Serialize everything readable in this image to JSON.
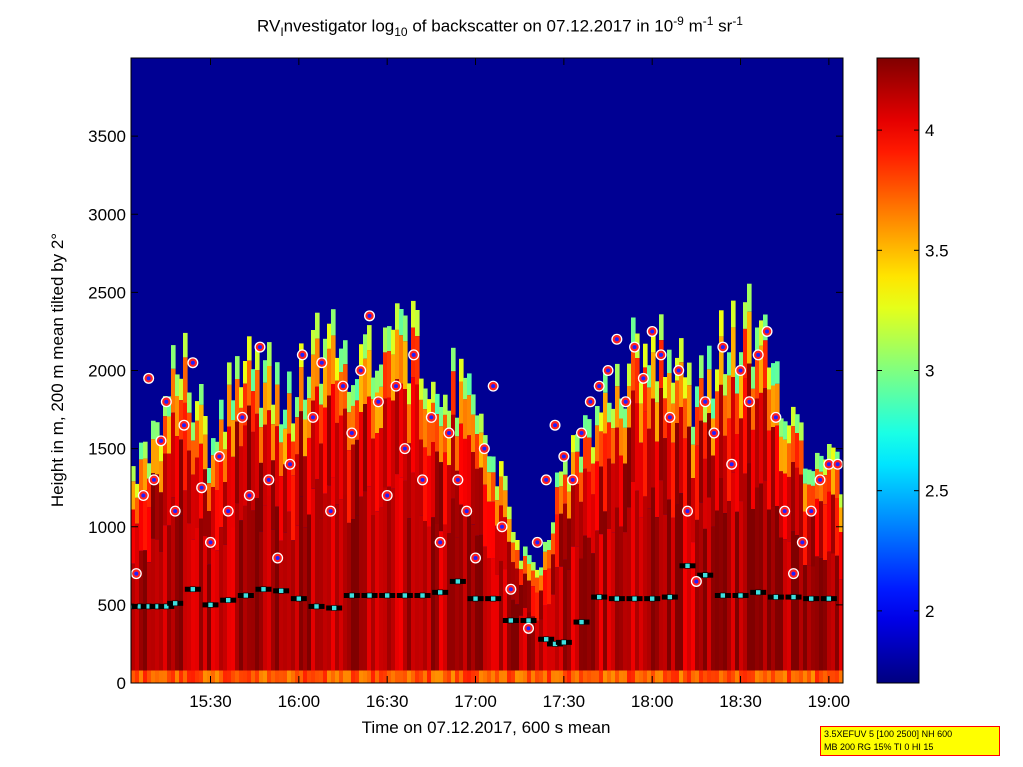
{
  "title": {
    "prefix": "RV",
    "sub1": "I",
    "mid": "nvestigator log",
    "sub2": "10",
    "rest": " of backscatter on 07.12.2017 in 10",
    "sup1": "-9",
    "unit1": " m",
    "sup2": "-1",
    "unit2": " sr",
    "sup3": "-1"
  },
  "xlabel": "Time on 07.12.2017, 600 s mean",
  "ylabel": "Height in m, 200 m mean tilted by 2°",
  "infobox": {
    "line1": "3.5XEFUV 5 [100 2500] NH 600",
    "line2": "MB 200 RG 15% TI 0 HI 15"
  },
  "chart_data": {
    "type": "heatmap",
    "colormap": "jet",
    "x_range_hours": [
      15.05,
      19.08
    ],
    "ylim": [
      0,
      4000
    ],
    "xticks": [
      {
        "value": 15.5,
        "label": "15:30"
      },
      {
        "value": 16.0,
        "label": "16:00"
      },
      {
        "value": 16.5,
        "label": "16:30"
      },
      {
        "value": 17.0,
        "label": "17:00"
      },
      {
        "value": 17.5,
        "label": "17:30"
      },
      {
        "value": 18.0,
        "label": "18:00"
      },
      {
        "value": 18.5,
        "label": "18:30"
      },
      {
        "value": 19.0,
        "label": "19:00"
      }
    ],
    "yticks": [
      0,
      500,
      1000,
      1500,
      2000,
      2500,
      3000,
      3500
    ],
    "colorbar": {
      "range": [
        1.7,
        4.3
      ],
      "ticks": [
        {
          "value": 2,
          "label": "2"
        },
        {
          "value": 2.5,
          "label": "2.5"
        },
        {
          "value": 3,
          "label": "3"
        },
        {
          "value": 3.5,
          "label": "3.5"
        },
        {
          "value": 4,
          "label": "4"
        }
      ]
    },
    "background_value": 1.75,
    "aerosol_layer_top_profile": [
      [
        15.05,
        1450
      ],
      [
        15.2,
        1750
      ],
      [
        15.35,
        2250
      ],
      [
        15.5,
        1600
      ],
      [
        15.65,
        2250
      ],
      [
        15.8,
        2100
      ],
      [
        15.95,
        1900
      ],
      [
        16.05,
        2200
      ],
      [
        16.2,
        2300
      ],
      [
        16.35,
        2250
      ],
      [
        16.5,
        2450
      ],
      [
        16.65,
        2300
      ],
      [
        16.8,
        2150
      ],
      [
        16.95,
        1900
      ],
      [
        17.1,
        1600
      ],
      [
        17.2,
        1100
      ],
      [
        17.3,
        800
      ],
      [
        17.4,
        900
      ],
      [
        17.5,
        1500
      ],
      [
        17.6,
        1700
      ],
      [
        17.75,
        1900
      ],
      [
        17.9,
        2250
      ],
      [
        18.05,
        2350
      ],
      [
        18.15,
        2200
      ],
      [
        18.25,
        1900
      ],
      [
        18.4,
        2300
      ],
      [
        18.55,
        2400
      ],
      [
        18.7,
        2150
      ],
      [
        18.85,
        1650
      ],
      [
        19.0,
        1500
      ],
      [
        19.08,
        1450
      ]
    ],
    "series": [
      {
        "marker": "white-red-blue circle",
        "x": [
          15.08,
          15.12,
          15.15,
          15.18,
          15.22,
          15.25,
          15.3,
          15.35,
          15.4,
          15.45,
          15.5,
          15.55,
          15.6,
          15.68,
          15.72,
          15.78,
          15.83,
          15.88,
          15.95,
          16.02,
          16.08,
          16.13,
          16.18,
          16.25,
          16.3,
          16.35,
          16.4,
          16.45,
          16.5,
          16.55,
          16.6,
          16.65,
          16.7,
          16.75,
          16.8,
          16.85,
          16.9,
          16.95,
          17.0,
          17.05,
          17.1,
          17.15,
          17.2,
          17.3,
          17.35,
          17.4,
          17.45,
          17.5,
          17.55,
          17.6,
          17.65,
          17.7,
          17.75,
          17.8,
          17.85,
          17.9,
          17.95,
          18.0,
          18.05,
          18.1,
          18.15,
          18.2,
          18.25,
          18.3,
          18.35,
          18.4,
          18.45,
          18.5,
          18.55,
          18.6,
          18.65,
          18.7,
          18.75,
          18.8,
          18.85,
          18.9,
          18.95,
          19.0,
          19.05
        ],
        "y": [
          700,
          1200,
          1950,
          1300,
          1550,
          1800,
          1100,
          1650,
          2050,
          1250,
          900,
          1450,
          1100,
          1700,
          1200,
          2150,
          1300,
          800,
          1400,
          2100,
          1700,
          2050,
          1100,
          1900,
          1600,
          2000,
          2350,
          1800,
          1200,
          1900,
          1500,
          2100,
          1300,
          1700,
          900,
          1600,
          1300,
          1100,
          800,
          1500,
          1900,
          1000,
          600,
          350,
          900,
          1300,
          1650,
          1450,
          1300,
          1600,
          1800,
          1900,
          2000,
          2200,
          1800,
          2150,
          1950,
          2250,
          2100,
          1700,
          2000,
          1100,
          650,
          1800,
          1600,
          2150,
          1400,
          2000,
          1800,
          2100,
          2250,
          1700,
          1100,
          700,
          900,
          1100,
          1300,
          1400,
          1400
        ]
      },
      {
        "marker": "cyan square",
        "x": [
          15.05,
          15.1,
          15.15,
          15.2,
          15.25,
          15.3,
          15.4,
          15.5,
          15.6,
          15.7,
          15.8,
          15.9,
          16.0,
          16.1,
          16.2,
          16.3,
          16.4,
          16.5,
          16.6,
          16.7,
          16.8,
          16.9,
          17.0,
          17.1,
          17.2,
          17.3,
          17.4,
          17.45,
          17.5,
          17.6,
          17.7,
          17.8,
          17.9,
          18.0,
          18.1,
          18.2,
          18.3,
          18.4,
          18.5,
          18.6,
          18.7,
          18.8,
          18.9,
          19.0
        ],
        "y": [
          490,
          490,
          490,
          490,
          490,
          510,
          600,
          500,
          530,
          560,
          600,
          590,
          540,
          490,
          480,
          560,
          560,
          560,
          560,
          560,
          580,
          650,
          540,
          540,
          400,
          400,
          280,
          250,
          260,
          390,
          550,
          540,
          540,
          540,
          550,
          750,
          690,
          560,
          560,
          580,
          550,
          550,
          540,
          540
        ]
      }
    ]
  },
  "colors": {
    "background_jet_low": "#00008f",
    "layer_high": "#7f0000",
    "circle_fill": "#ff2020",
    "circle_outline": "#ffffff",
    "circle_inner": "#2020ff",
    "square_fill": "#3fe0e0",
    "infobox_bg": "#ffff00",
    "infobox_border": "#ff0000"
  }
}
